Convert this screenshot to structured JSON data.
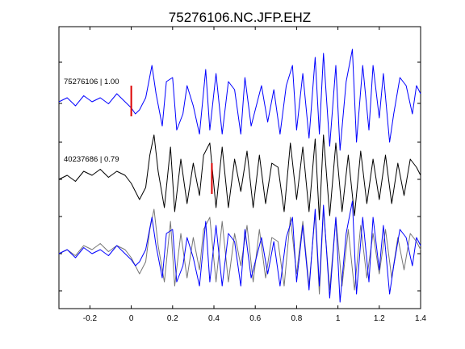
{
  "chart_data": {
    "type": "line",
    "title": "75276106.NC.JFP.EHZ",
    "xlim": [
      -0.35,
      1.4
    ],
    "xticks": [
      -0.2,
      0,
      0.2,
      0.4,
      0.6,
      0.8,
      1,
      1.2,
      1.4
    ],
    "xtick_labels": [
      "-0.2",
      "0",
      "0.2",
      "0.4",
      "0.6",
      "0.8",
      "1",
      "1.2",
      "1.4"
    ],
    "grid": false,
    "traces": [
      {
        "label": "75276106 | 1.00",
        "color": "#0000ff",
        "pick_marker_x": 0.0,
        "t": [
          -0.35,
          -0.31,
          -0.27,
          -0.23,
          -0.19,
          -0.15,
          -0.11,
          -0.07,
          -0.03,
          0.0,
          0.02,
          0.04,
          0.07,
          0.1,
          0.12,
          0.15,
          0.17,
          0.2,
          0.22,
          0.25,
          0.27,
          0.3,
          0.33,
          0.36,
          0.38,
          0.41,
          0.44,
          0.47,
          0.5,
          0.53,
          0.55,
          0.58,
          0.6,
          0.63,
          0.66,
          0.69,
          0.72,
          0.75,
          0.78,
          0.8,
          0.83,
          0.86,
          0.89,
          0.91,
          0.93,
          0.96,
          0.99,
          1.01,
          1.04,
          1.07,
          1.09,
          1.12,
          1.15,
          1.17,
          1.2,
          1.22,
          1.25,
          1.27,
          1.3,
          1.33,
          1.36,
          1.38,
          1.4
        ],
        "v": [
          0.0,
          0.1,
          -0.1,
          0.15,
          0.0,
          0.1,
          -0.05,
          0.2,
          0.0,
          -0.15,
          -0.3,
          -0.2,
          0.1,
          0.9,
          0.2,
          -0.6,
          0.5,
          0.6,
          -0.7,
          -0.3,
          0.4,
          -0.1,
          -0.8,
          0.8,
          -0.7,
          0.7,
          -0.8,
          0.5,
          0.3,
          -0.8,
          0.6,
          -0.6,
          -0.2,
          0.4,
          -0.5,
          0.3,
          -0.8,
          0.4,
          0.9,
          -0.7,
          0.7,
          -0.9,
          1.1,
          -0.8,
          1.2,
          -1.1,
          0.9,
          -1.2,
          0.5,
          1.3,
          -1.0,
          0.9,
          -0.7,
          0.9,
          -0.4,
          0.7,
          -1.0,
          -0.3,
          0.6,
          0.4,
          -0.3,
          0.4,
          0.2
        ]
      },
      {
        "label": "40237686 | 0.79",
        "color": "#000000",
        "pick_marker_x": 0.39,
        "t": [
          -0.35,
          -0.31,
          -0.27,
          -0.23,
          -0.19,
          -0.15,
          -0.11,
          -0.07,
          -0.03,
          0.0,
          0.02,
          0.04,
          0.07,
          0.09,
          0.11,
          0.13,
          0.16,
          0.19,
          0.21,
          0.24,
          0.27,
          0.3,
          0.33,
          0.35,
          0.38,
          0.41,
          0.44,
          0.47,
          0.5,
          0.53,
          0.56,
          0.59,
          0.62,
          0.65,
          0.68,
          0.71,
          0.74,
          0.77,
          0.8,
          0.83,
          0.86,
          0.89,
          0.91,
          0.93,
          0.96,
          0.99,
          1.02,
          1.05,
          1.08,
          1.11,
          1.14,
          1.17,
          1.2,
          1.23,
          1.26,
          1.29,
          1.32,
          1.35,
          1.38,
          1.4
        ],
        "v": [
          0.0,
          0.1,
          -0.05,
          0.2,
          0.1,
          0.25,
          0.05,
          0.2,
          0.1,
          -0.1,
          -0.3,
          -0.5,
          -0.2,
          0.6,
          1.1,
          0.2,
          -0.7,
          0.8,
          -0.8,
          0.5,
          -0.6,
          0.4,
          -0.4,
          0.6,
          0.9,
          -0.7,
          0.8,
          -0.7,
          0.5,
          -0.3,
          0.7,
          -0.7,
          0.6,
          -0.6,
          0.4,
          0.3,
          -0.8,
          0.9,
          -0.5,
          0.8,
          -0.8,
          1.0,
          -1.0,
          1.1,
          -0.9,
          0.9,
          -0.8,
          0.6,
          -0.9,
          0.7,
          -0.6,
          0.5,
          -0.5,
          0.6,
          -0.6,
          0.4,
          -0.4,
          0.5,
          0.3,
          0.1
        ]
      }
    ]
  }
}
